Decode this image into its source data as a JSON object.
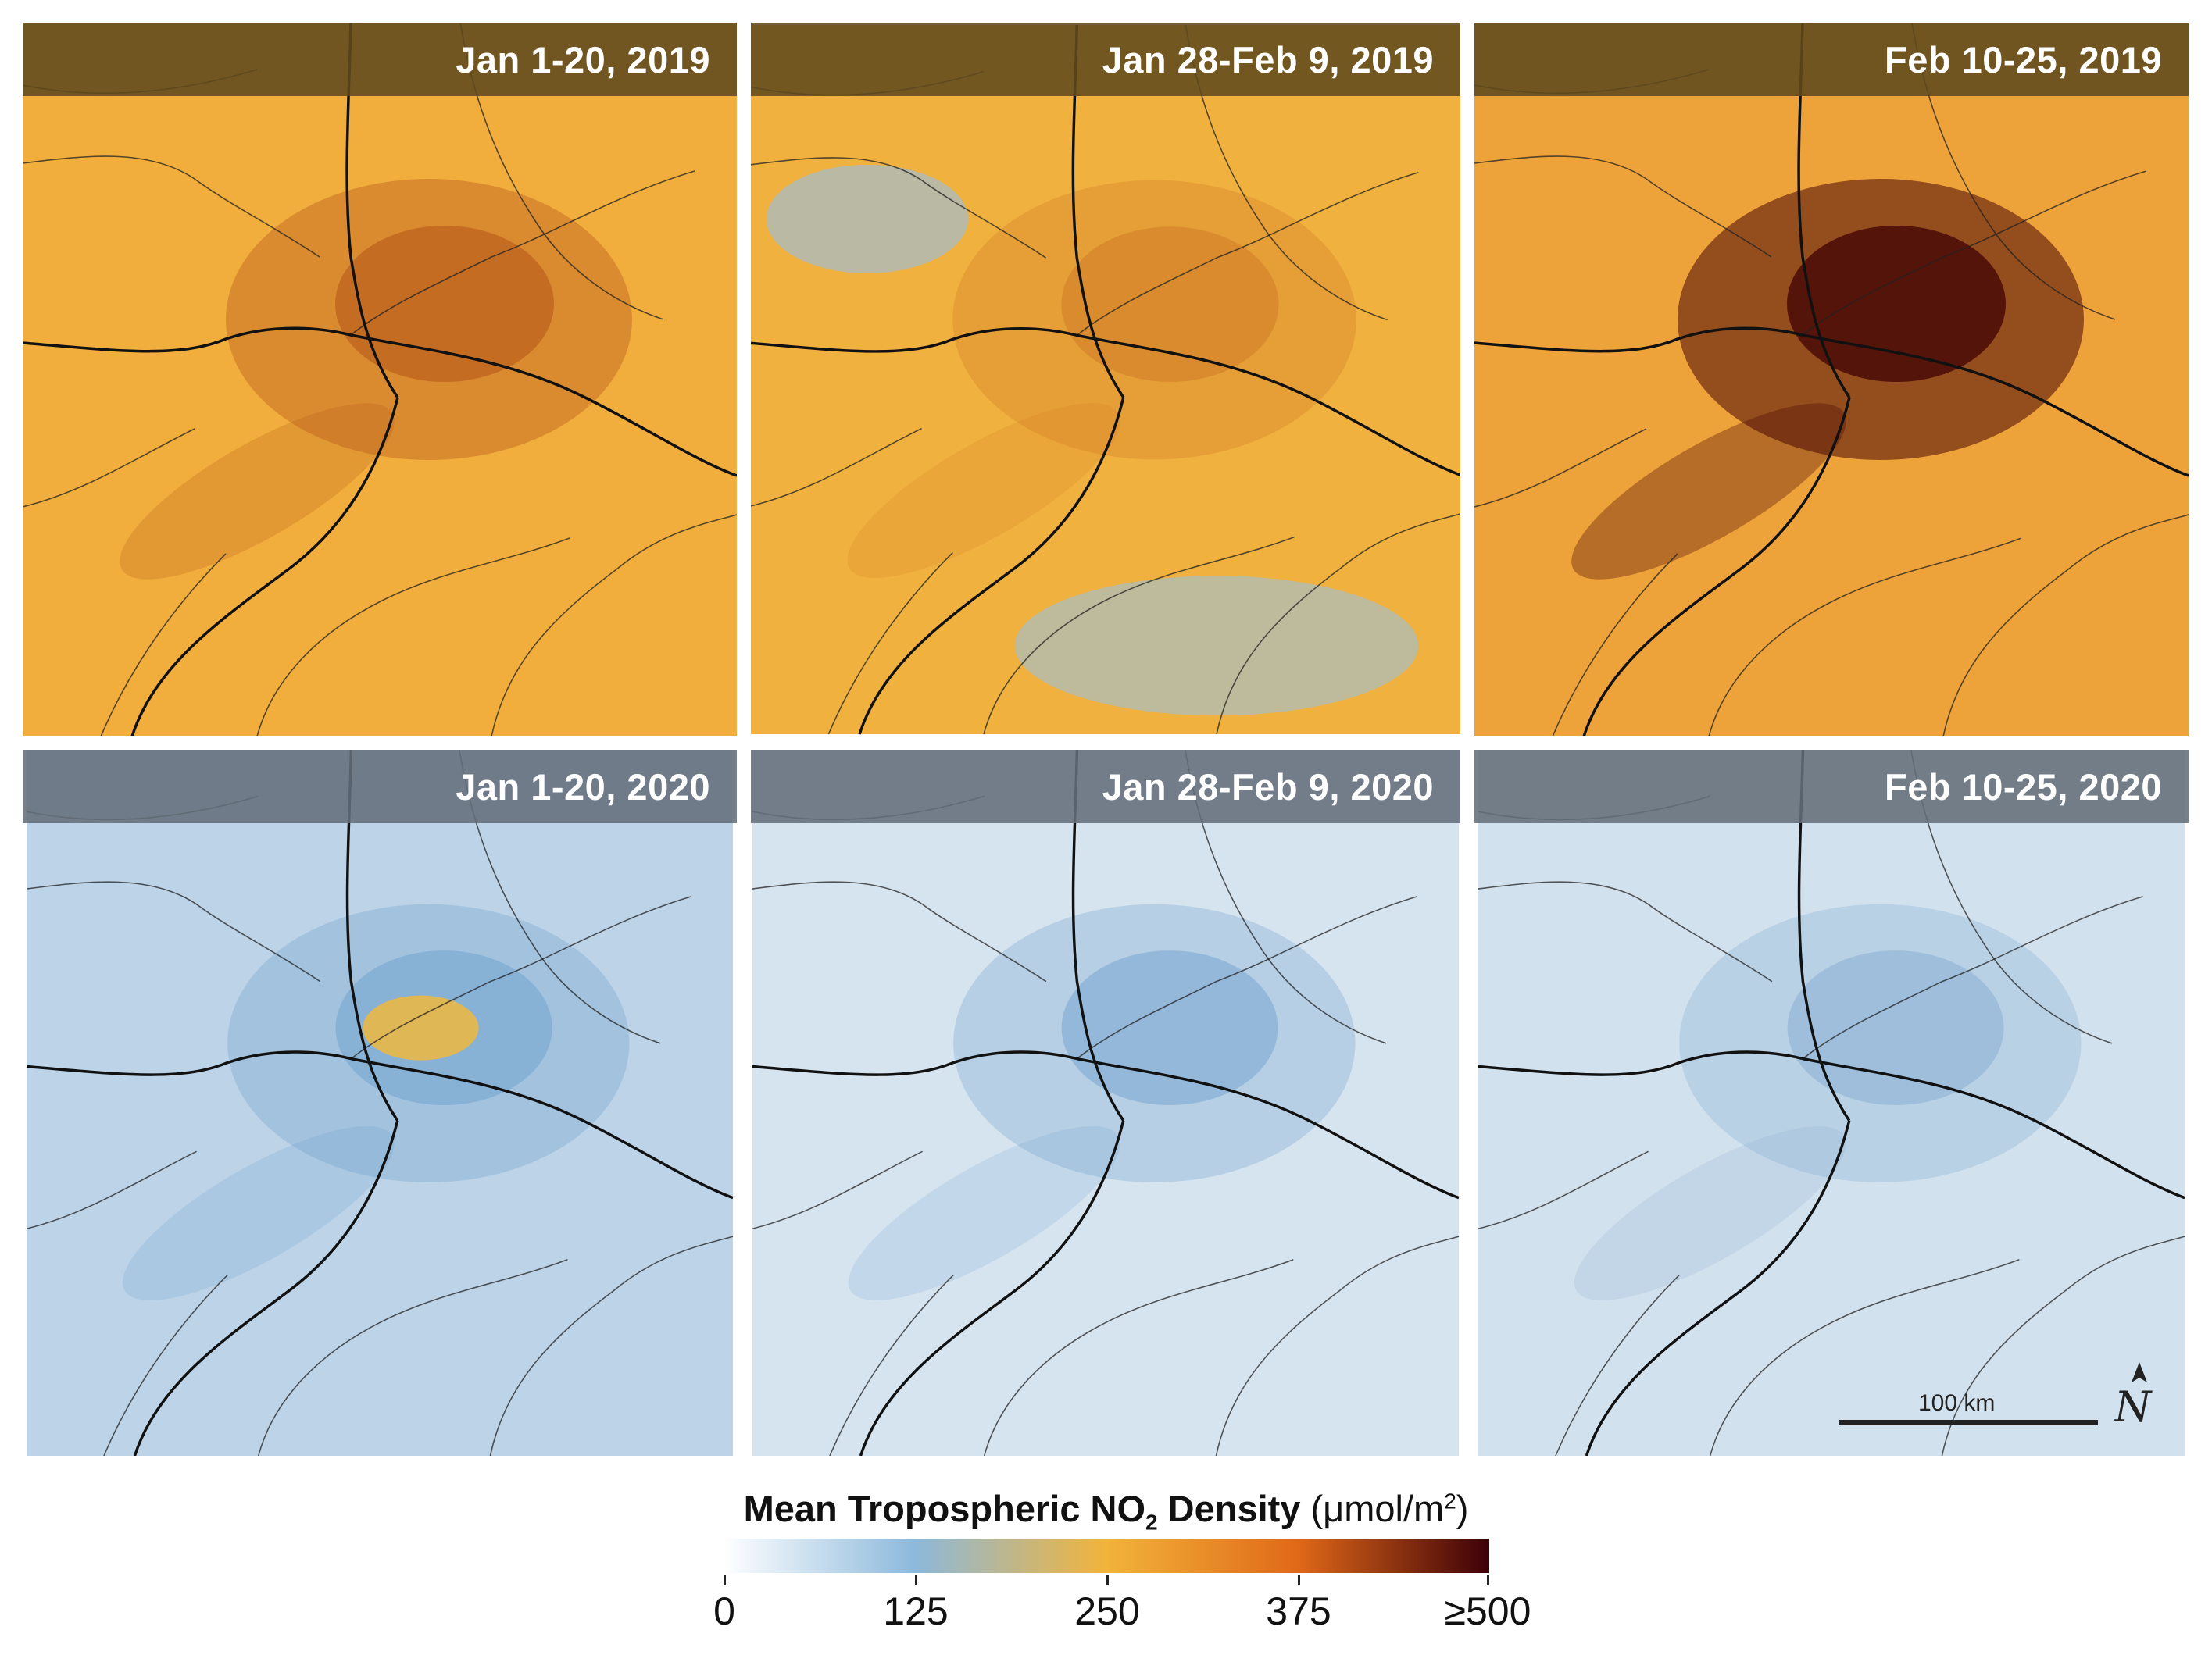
{
  "panels": [
    {
      "id": "p1",
      "label": "Jan 1-20, 2019",
      "year": "2019",
      "regime": "high-2019-a"
    },
    {
      "id": "p2",
      "label": "Jan 28-Feb 9, 2019",
      "year": "2019",
      "regime": "mid-2019"
    },
    {
      "id": "p3",
      "label": "Feb 10-25, 2019",
      "year": "2019",
      "regime": "very-high-2019"
    },
    {
      "id": "p4",
      "label": "Jan 1-20, 2020",
      "year": "2020",
      "regime": "low-2020-a"
    },
    {
      "id": "p5",
      "label": "Jan 28-Feb 9, 2020",
      "year": "2020",
      "regime": "low-2020-b"
    },
    {
      "id": "p6",
      "label": "Feb 10-25, 2020",
      "year": "2020",
      "regime": "low-2020-c"
    }
  ],
  "legend": {
    "title_bold": "Mean Tropospheric NO",
    "title_subscript": "2",
    "title_bold_after": " Density",
    "units_prefix": " (μmol/m",
    "units_superscript": "2",
    "units_suffix": ")",
    "ticks": [
      "0",
      "125",
      "250",
      "375",
      "≥500"
    ],
    "colors": [
      "#ffffff",
      "#8cb9dc",
      "#f2b43a",
      "#e06818",
      "#3d0008"
    ]
  },
  "scale": {
    "label": "100 km"
  },
  "north": {
    "label": "N"
  }
}
